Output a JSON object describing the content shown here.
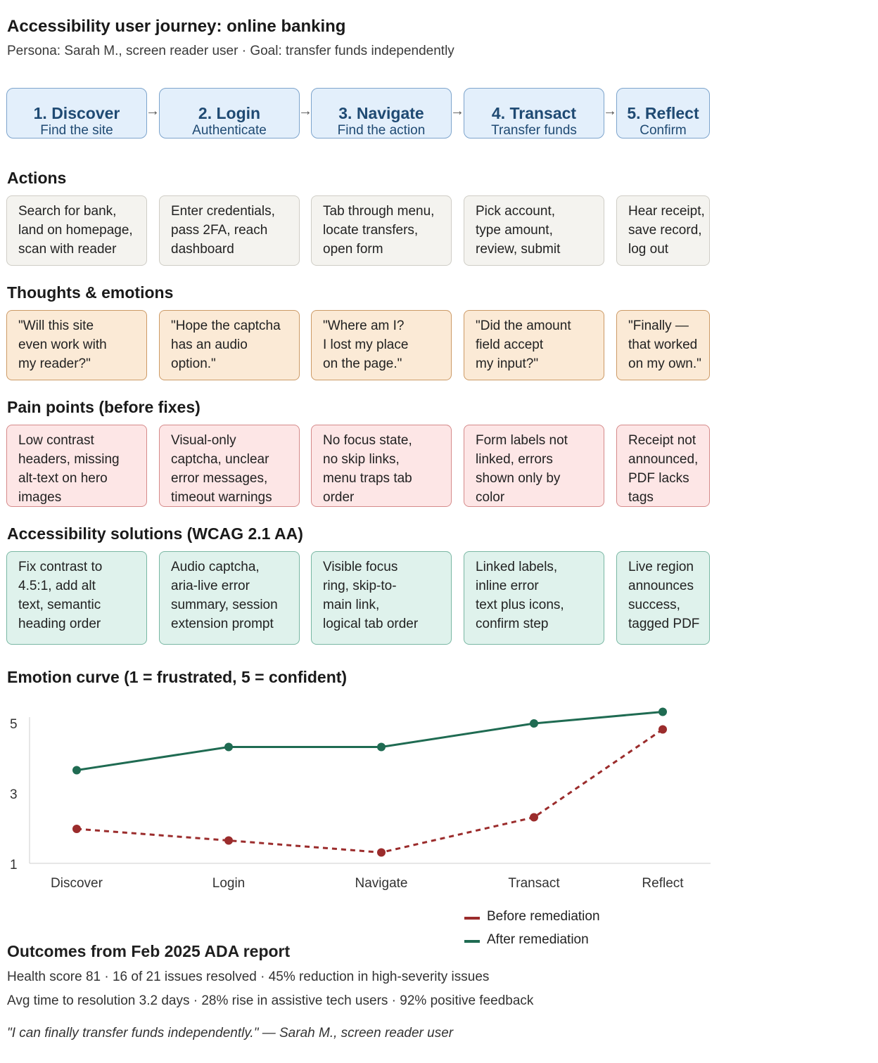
{
  "header": {
    "title": "Accessibility user journey: online banking",
    "subtitle": "Persona: Sarah M., screen reader user · Goal: transfer funds independently"
  },
  "stages": [
    {
      "title": "1. Discover",
      "subtitle": "Find the site"
    },
    {
      "title": "2. Login",
      "subtitle": "Authenticate"
    },
    {
      "title": "3. Navigate",
      "subtitle": "Find the action"
    },
    {
      "title": "4. Transact",
      "subtitle": "Transfer funds"
    },
    {
      "title": "5. Reflect",
      "subtitle": "Confirm"
    }
  ],
  "arrow_glyph": "→",
  "sections": {
    "actions": {
      "title": "Actions",
      "cards": [
        [
          "Search for bank,",
          "land on homepage,",
          "scan with reader"
        ],
        [
          "Enter credentials,",
          "pass 2FA, reach",
          "dashboard"
        ],
        [
          "Tab through menu,",
          "locate transfers,",
          "open form"
        ],
        [
          "Pick account,",
          "type amount,",
          "review, submit"
        ],
        [
          "Hear receipt,",
          "save record,",
          "log out"
        ]
      ]
    },
    "thoughts": {
      "title": "Thoughts & emotions",
      "cards": [
        [
          "\"Will this site",
          "even work with",
          "my reader?\""
        ],
        [
          "\"Hope the captcha",
          "has an audio",
          "option.\""
        ],
        [
          "\"Where am I?",
          "I lost my place",
          "on the page.\""
        ],
        [
          "\"Did the amount",
          "field accept",
          "my input?\""
        ],
        [
          "\"Finally —",
          "that worked",
          "on my own.\""
        ]
      ]
    },
    "pain": {
      "title": "Pain points (before fixes)",
      "cards": [
        [
          "Low contrast",
          "headers, missing",
          "alt-text on hero",
          "images"
        ],
        [
          "Visual-only",
          "captcha, unclear",
          "error messages,",
          "timeout warnings"
        ],
        [
          "No focus state,",
          "no skip links,",
          "menu traps tab",
          "order"
        ],
        [
          "Form labels not",
          "linked, errors",
          "shown only by",
          "color"
        ],
        [
          "Receipt not",
          "announced,",
          "PDF lacks",
          "tags"
        ]
      ]
    },
    "solutions": {
      "title": "Accessibility solutions (WCAG 2.1 AA)",
      "cards": [
        [
          "Fix contrast to",
          "4.5:1, add alt",
          "text, semantic",
          "heading order"
        ],
        [
          "Audio captcha,",
          "aria-live error",
          "summary, session",
          "extension prompt"
        ],
        [
          "Visible focus",
          "ring, skip-to-",
          "main link,",
          "logical tab order"
        ],
        [
          "Linked labels,",
          "inline error",
          "text plus icons,",
          "confirm step"
        ],
        [
          "Live region",
          "announces",
          "success,",
          "tagged PDF"
        ]
      ]
    }
  },
  "chart_data": {
    "type": "line",
    "title": "Emotion curve (1 = frustrated, 5 = confident)",
    "categories": [
      "Discover",
      "Login",
      "Navigate",
      "Transact",
      "Reflect"
    ],
    "yticks": [
      5,
      3,
      1
    ],
    "ylim": [
      1,
      5
    ],
    "grid": false,
    "legend_position": "bottom-right",
    "series": [
      {
        "name": "Before remediation",
        "values": [
          2.0,
          1.67,
          1.33,
          2.33,
          4.83
        ],
        "color": "#9b2c2c",
        "style": "dashed"
      },
      {
        "name": "After remediation",
        "values": [
          3.67,
          4.33,
          4.33,
          5.0,
          5.33
        ],
        "color": "#1f6b52",
        "style": "solid"
      }
    ]
  },
  "outcomes": {
    "title": "Outcomes from Feb 2025 ADA report",
    "line1": "Health score 81 · 16 of 21 issues resolved · 45% reduction in high-severity issues",
    "line2": "Avg time to resolution 3.2 days · 28% rise in assistive tech users · 92% positive feedback",
    "quote": "\"I can finally transfer funds independently.\" — Sarah M., screen reader user"
  }
}
